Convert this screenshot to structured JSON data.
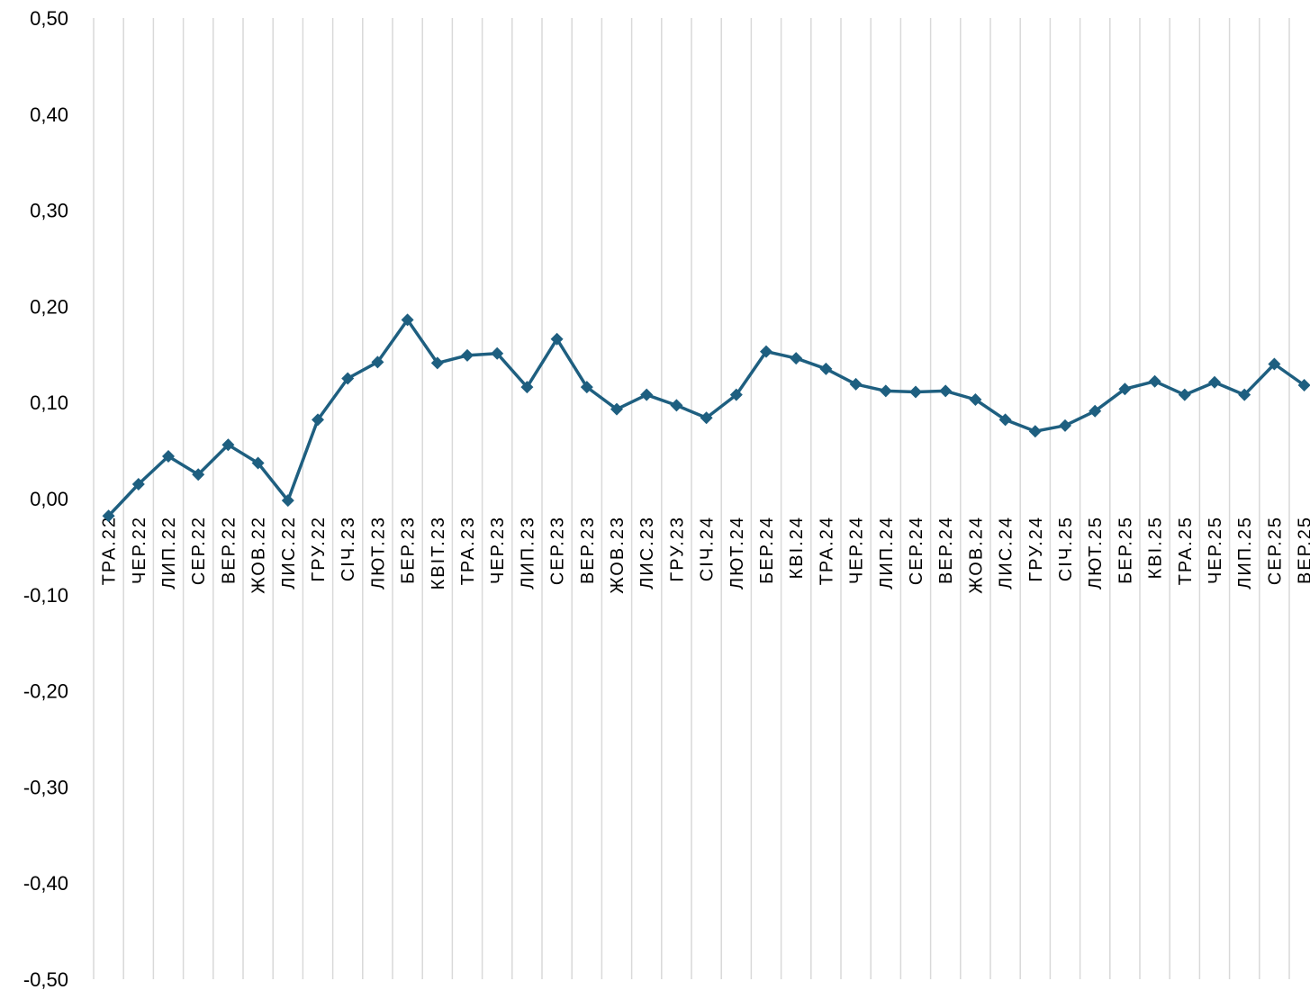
{
  "chart_data": {
    "type": "line",
    "title": "",
    "xlabel": "",
    "ylabel": "",
    "ylim": [
      -0.5,
      0.5
    ],
    "yticks": [
      "0,50",
      "0,40",
      "0,30",
      "0,20",
      "0,10",
      "0,00",
      "-0,10",
      "-0,20",
      "-0,30",
      "-0,40",
      "-0,50"
    ],
    "ytick_values": [
      0.5,
      0.4,
      0.3,
      0.2,
      0.1,
      0.0,
      -0.1,
      -0.2,
      -0.3,
      -0.4,
      -0.5
    ],
    "grid": "vertical",
    "legend": "none",
    "colors": {
      "series": "#1e5f80",
      "grid": "#d9d9d9"
    },
    "categories": [
      "ТРА.22",
      "ЧЕР.22",
      "ЛИП.22",
      "СЕР.22",
      "ВЕР.22",
      "ЖОВ.22",
      "ЛИС.22",
      "ГРУ.22",
      "СІЧ.23",
      "ЛЮТ.23",
      "БЕР.23",
      "КВІТ.23",
      "ТРА.23",
      "ЧЕР.23",
      "ЛИП.23",
      "СЕР.23",
      "ВЕР.23",
      "ЖОВ.23",
      "ЛИС.23",
      "ГРУ.23",
      "СІЧ.24",
      "ЛЮТ.24",
      "БЕР.24",
      "КВІ.24",
      "ТРА.24",
      "ЧЕР.24",
      "ЛИП.24",
      "СЕР.24",
      "ВЕР.24",
      "ЖОВ.24",
      "ЛИС.24",
      "ГРУ.24",
      "СІЧ.25",
      "ЛЮТ.25",
      "БЕР.25",
      "КВІ.25",
      "ТРА.25",
      "ЧЕР.25",
      "ЛИП.25",
      "СЕР.25",
      "ВЕР.25"
    ],
    "series": [
      {
        "values": [
          -0.018,
          0.015,
          0.044,
          0.025,
          0.056,
          0.037,
          -0.002,
          0.082,
          0.125,
          0.142,
          0.186,
          0.141,
          0.149,
          0.151,
          0.116,
          0.166,
          0.116,
          0.093,
          0.108,
          0.097,
          0.084,
          0.108,
          0.153,
          0.146,
          0.135,
          0.119,
          0.112,
          0.111,
          0.112,
          0.103,
          0.082,
          0.07,
          0.076,
          0.091,
          0.114,
          0.122,
          0.108,
          0.121,
          0.108,
          0.14,
          0.118
        ]
      }
    ]
  }
}
